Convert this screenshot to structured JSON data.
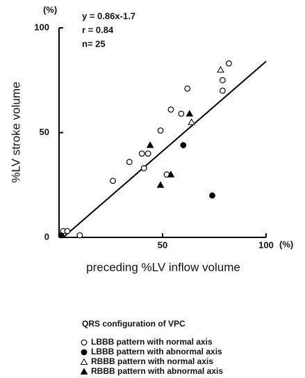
{
  "chart_data": {
    "type": "scatter",
    "x_label": "preceding %LV inflow volume",
    "y_label": "%LV stroke volume",
    "x_unit": "(%)",
    "y_unit": "(%)",
    "xlim": [
      0,
      100
    ],
    "ylim": [
      0,
      100
    ],
    "xticks": [
      50,
      100
    ],
    "yticks": [
      0,
      50,
      100
    ],
    "annotations": [
      "y = 0.86x-1.7",
      "r = 0.84",
      "n= 25"
    ],
    "regression": {
      "x": [
        2,
        100
      ],
      "y": [
        0,
        84
      ]
    },
    "legend_title": "QRS configuration of VPC",
    "series": [
      {
        "name": "LBBB pattern with normal axis",
        "color": "#000000",
        "marker": "circle",
        "filled": false,
        "x": [
          2,
          4,
          10,
          26,
          34,
          40,
          43,
          41,
          49,
          54,
          52,
          59,
          62,
          79,
          79,
          82
        ],
        "y": [
          3,
          3,
          1,
          27,
          36,
          40,
          40,
          33,
          51,
          61,
          30,
          59,
          71,
          75,
          70,
          83
        ]
      },
      {
        "name": "LBBB pattern with abnormal axis",
        "color": "#000000",
        "marker": "circle",
        "filled": true,
        "x": [
          1,
          60,
          74
        ],
        "y": [
          1,
          44,
          20
        ]
      },
      {
        "name": "RBBB pattern with normal axis",
        "color": "#000000",
        "marker": "triangle",
        "filled": false,
        "x": [
          78,
          64
        ],
        "y": [
          80,
          55
        ]
      },
      {
        "name": "RBBB pattern with abnormal axis",
        "color": "#000000",
        "marker": "triangle",
        "filled": true,
        "x": [
          44,
          63,
          54,
          49
        ],
        "y": [
          44,
          59,
          30,
          25
        ]
      }
    ]
  }
}
